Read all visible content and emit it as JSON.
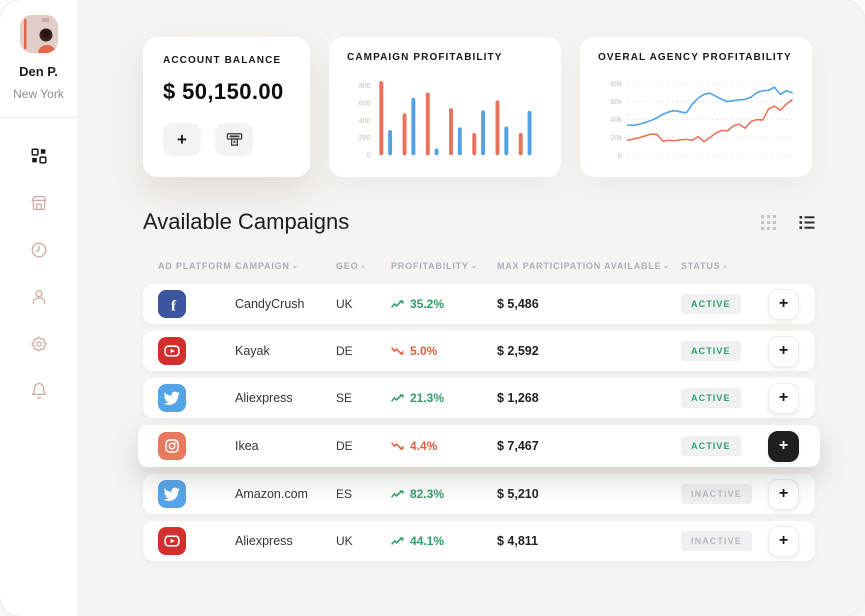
{
  "theme": {
    "bg": "#f6f4f2",
    "accent_green": "#2f9e68",
    "accent_red": "#e2603d",
    "muted_icon": "#c9aba3",
    "badge_bg": "#eef0f1"
  },
  "sidebar": {
    "user": {
      "name": "Den P.",
      "location": "New York"
    },
    "items": [
      {
        "id": "dashboard",
        "icon": "dashboard-icon",
        "active": true
      },
      {
        "id": "store",
        "icon": "store-icon",
        "active": false
      },
      {
        "id": "history",
        "icon": "clock-icon",
        "active": false
      },
      {
        "id": "profile",
        "icon": "user-icon",
        "active": false
      },
      {
        "id": "settings",
        "icon": "gear-icon",
        "active": false
      },
      {
        "id": "notifications",
        "icon": "bell-icon",
        "active": false
      }
    ]
  },
  "balance": {
    "title": "ACCOUNT BALANCE",
    "amount": "$ 50,150.00",
    "add_icon": "+",
    "withdraw_icon": "atm-withdraw-icon"
  },
  "campaigns": {
    "title": "Available Campaigns",
    "view_toggles": [
      {
        "id": "grid-view",
        "icon": "grid-view-icon",
        "active": false
      },
      {
        "id": "list-view",
        "icon": "list-view-icon",
        "active": true
      }
    ],
    "columns": [
      "AD PLATFORM",
      "CAMPAIGN",
      "GEO",
      "PROFITABILITY",
      "MAX PARTICIPATION AVAILABLE",
      "STATUS"
    ],
    "plus_icon": "+",
    "rows": [
      {
        "platform": "facebook",
        "platform_color": "#3b559e",
        "campaign": "CandyCrush",
        "geo": "UK",
        "trend": "up",
        "profitability": "35.2%",
        "max_participation": "$ 5,486",
        "status": "ACTIVE",
        "highlighted": false
      },
      {
        "platform": "youtube",
        "platform_color": "#d32f2f",
        "campaign": "Kayak",
        "geo": "DE",
        "trend": "down",
        "profitability": "5.0%",
        "max_participation": "$ 2,592",
        "status": "ACTIVE",
        "highlighted": false
      },
      {
        "platform": "twitter",
        "platform_color": "#55a4e8",
        "campaign": "Aliexpress",
        "geo": "SE",
        "trend": "up",
        "profitability": "21.3%",
        "max_participation": "$ 1,268",
        "status": "ACTIVE",
        "highlighted": false
      },
      {
        "platform": "instagram",
        "platform_color": "#e8795f",
        "campaign": "Ikea",
        "geo": "DE",
        "trend": "down",
        "profitability": "4.4%",
        "max_participation": "$ 7,467",
        "status": "ACTIVE",
        "highlighted": true
      },
      {
        "platform": "twitter",
        "platform_color": "#55a4e8",
        "campaign": "Amazon.com",
        "geo": "ES",
        "trend": "up",
        "profitability": "82.3%",
        "max_participation": "$ 5,210",
        "status": "INACTIVE",
        "highlighted": false
      },
      {
        "platform": "youtube",
        "platform_color": "#d32f2f",
        "campaign": "Aliexpress",
        "geo": "UK",
        "trend": "up",
        "profitability": "44.1%",
        "max_participation": "$ 4,811",
        "status": "INACTIVE",
        "highlighted": false
      }
    ]
  },
  "chart_data": [
    {
      "type": "bar",
      "title": "CAMPAIGN PROFITABILITY",
      "categories": [
        "",
        "",
        "",
        "",
        "",
        "",
        ""
      ],
      "series": [
        {
          "name": "series-orange",
          "color": "#e8735a",
          "values": [
            850,
            480,
            720,
            540,
            255,
            630,
            255
          ]
        },
        {
          "name": "series-blue",
          "color": "#54a1e8",
          "values": [
            290,
            660,
            75,
            320,
            515,
            330,
            510
          ]
        }
      ],
      "xlabel": "",
      "ylabel": "",
      "yticks": [
        0,
        200,
        400,
        600,
        800
      ],
      "ylim": [
        0,
        900
      ],
      "grid": false,
      "legend": false
    },
    {
      "type": "line",
      "title": "OVERAL AGENCY PROFITABILITY",
      "x": [
        0,
        1,
        2,
        3,
        4,
        5,
        6,
        7,
        8,
        9,
        10,
        11,
        12,
        13,
        14,
        15,
        16,
        17,
        18,
        19,
        20,
        21,
        22,
        23,
        24,
        25,
        26,
        27,
        28
      ],
      "series": [
        {
          "name": "series-blue",
          "color": "#4fa0e8",
          "values": [
            34,
            33.5,
            35,
            37,
            39,
            42,
            46,
            48.5,
            50,
            48.5,
            47.5,
            57,
            64,
            68,
            69.5,
            66,
            62.5,
            60,
            61,
            62,
            62.5,
            65,
            70,
            72,
            72.5,
            76,
            68,
            72,
            70
          ]
        },
        {
          "name": "series-orange",
          "color": "#e8745a",
          "values": [
            17,
            18.5,
            20,
            22,
            24,
            23.5,
            16,
            17,
            16.5,
            17.5,
            18,
            17,
            21,
            15.5,
            20,
            25,
            28,
            27.5,
            33,
            35,
            30.5,
            38,
            40,
            39.5,
            52,
            55,
            50.5,
            57,
            62
          ]
        }
      ],
      "xlabel": "",
      "ylabel": "",
      "yticks": [
        0,
        20,
        40,
        60,
        80
      ],
      "ytick_labels": [
        "0",
        "20k",
        "40k",
        "60k",
        "80k"
      ],
      "ylim": [
        0,
        88
      ],
      "grid": "dotted horizontal",
      "legend": false,
      "unit": "thousands"
    }
  ]
}
